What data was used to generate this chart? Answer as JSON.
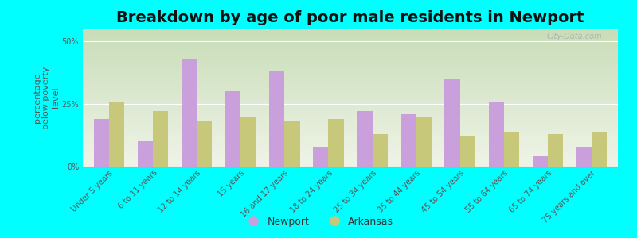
{
  "title": "Breakdown by age of poor male residents in Newport",
  "ylabel": "percentage\nbelow poverty\nlevel",
  "categories": [
    "Under 5 years",
    "6 to 11 years",
    "12 to 14 years",
    "15 years",
    "16 and 17 years",
    "18 to 24 years",
    "25 to 34 years",
    "35 to 44 years",
    "45 to 54 years",
    "55 to 64 years",
    "65 to 74 years",
    "75 years and over"
  ],
  "newport": [
    19,
    10,
    43,
    30,
    38,
    8,
    22,
    21,
    35,
    26,
    4,
    8
  ],
  "arkansas": [
    26,
    22,
    18,
    20,
    18,
    19,
    13,
    20,
    12,
    14,
    13,
    14
  ],
  "newport_color": "#c9a0dc",
  "arkansas_color": "#c8c87a",
  "background_color": "#00ffff",
  "ylim": [
    0,
    55
  ],
  "yticks": [
    0,
    25,
    50
  ],
  "ytick_labels": [
    "0%",
    "25%",
    "50%"
  ],
  "bar_width": 0.35,
  "title_fontsize": 14,
  "axis_label_fontsize": 8,
  "tick_fontsize": 7,
  "legend_fontsize": 9,
  "watermark": "City-Data.com"
}
